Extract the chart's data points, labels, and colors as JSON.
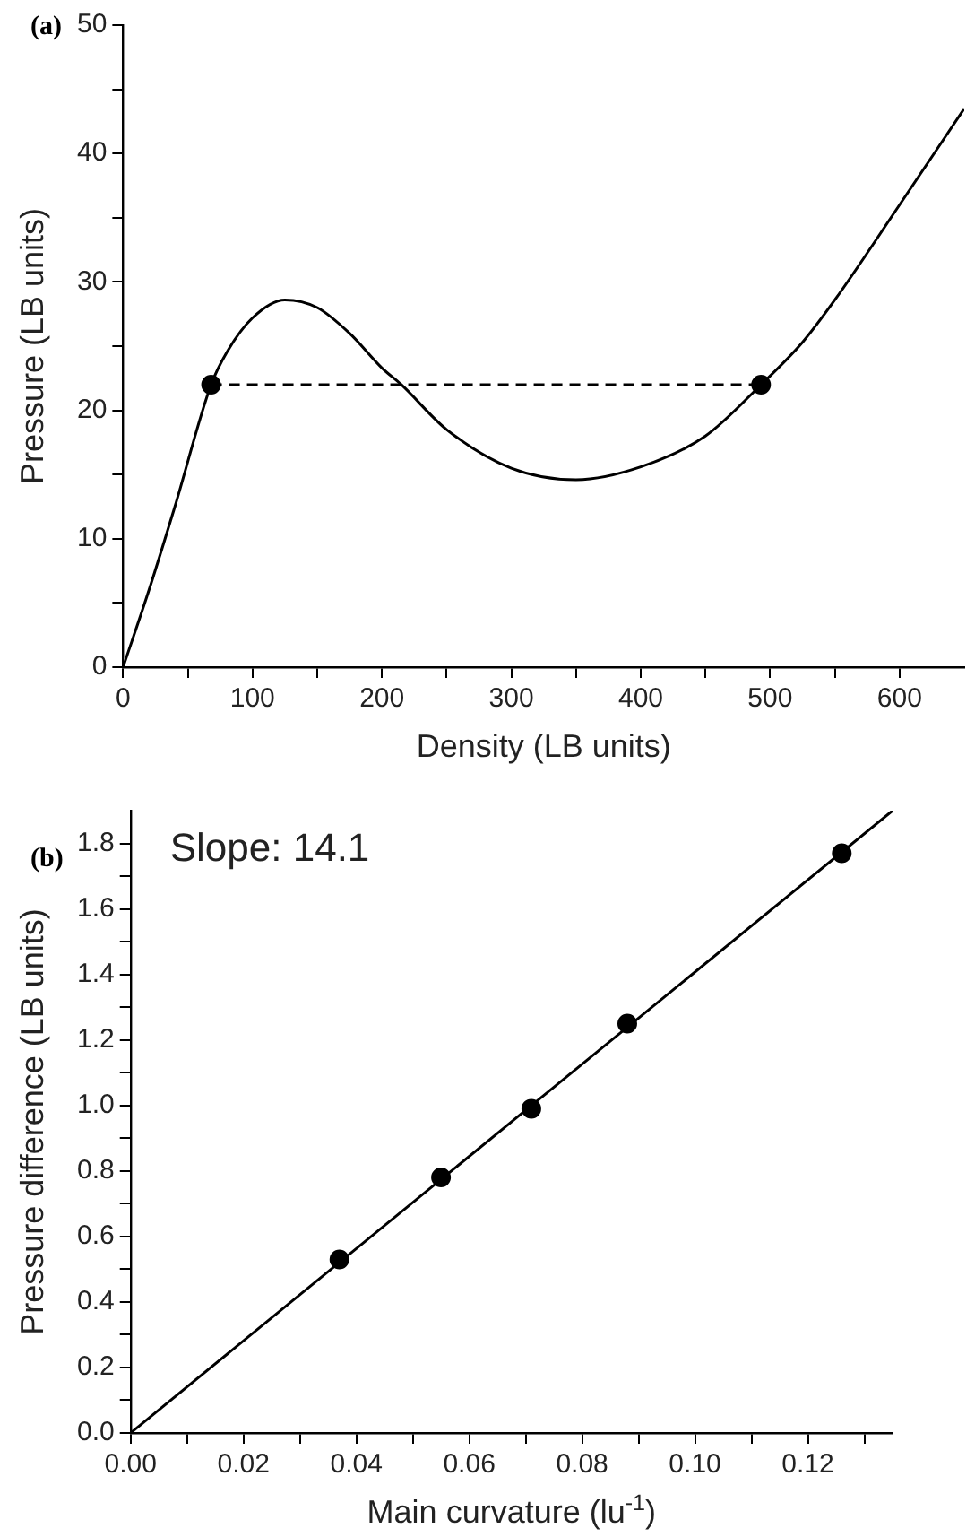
{
  "chart_data": [
    {
      "type": "line",
      "xlabel": "Density (LB units)",
      "ylabel": "Pressure (LB units)",
      "annotations": [
        "(a)"
      ],
      "xlim": [
        0,
        650
      ],
      "xticks": [
        0,
        {
          "value": 50,
          "label": null
        },
        100,
        {
          "value": 150,
          "label": null
        },
        200,
        {
          "value": 250,
          "label": null
        },
        300,
        {
          "value": 350,
          "label": null
        },
        400,
        {
          "value": 450,
          "label": null
        },
        500,
        {
          "value": 550,
          "label": null
        },
        600
      ],
      "ylim": [
        0,
        50
      ],
      "yticks": [
        0,
        {
          "value": 5,
          "label": null
        },
        10,
        {
          "value": 15,
          "label": null
        },
        20,
        {
          "value": 25,
          "label": null
        },
        30,
        {
          "value": 35,
          "label": null
        },
        40,
        {
          "value": 45,
          "label": null
        },
        50
      ],
      "grid": false,
      "legend": false,
      "series": [
        {
          "color": "#000000",
          "marker": "none",
          "line_style": "solid",
          "x": [
            0,
            20,
            40,
            68,
            80,
            100,
            125,
            150,
            175,
            200,
            215,
            250,
            300,
            350,
            400,
            450,
            493,
            525,
            550,
            600,
            650
          ],
          "values": [
            0,
            6,
            12.5,
            22,
            24.5,
            27.2,
            28.6,
            28,
            26,
            23.3,
            22,
            18.5,
            15.5,
            14.6,
            15.6,
            18,
            22,
            25.3,
            28.6,
            36,
            43.5
          ]
        },
        {
          "color": "#000000",
          "marker": "none",
          "line_style": "dashed",
          "x": [
            68,
            493
          ],
          "values": [
            22,
            22
          ]
        },
        {
          "type": "scatter",
          "color": "#000000",
          "marker": "circle",
          "x": [
            68,
            493
          ],
          "values": [
            22,
            22
          ]
        }
      ]
    },
    {
      "type": "scatter",
      "xlabel": "Main curvature (lu$^{-1}$)",
      "ylabel": "Pressure difference (LB units)",
      "annotations": [
        "(b)",
        "Slope: 14.1"
      ],
      "xlim": [
        0,
        0.135
      ],
      "xticks": [
        {
          "value": 0,
          "label": "0.00"
        },
        {
          "value": 0.01,
          "label": null
        },
        0.02,
        {
          "value": 0.03,
          "label": null
        },
        0.04,
        {
          "value": 0.05,
          "label": null
        },
        0.06,
        {
          "value": 0.07,
          "label": null
        },
        0.08,
        {
          "value": 0.09,
          "label": null
        },
        {
          "value": 0.1,
          "label": "0.10"
        },
        {
          "value": 0.11,
          "label": null
        },
        0.12,
        {
          "value": 0.13,
          "label": null
        }
      ],
      "ylim": [
        0,
        1.9
      ],
      "yticks": [
        {
          "value": 0,
          "label": "0.0"
        },
        {
          "value": 0.1,
          "label": null
        },
        0.2,
        {
          "value": 0.3,
          "label": null
        },
        0.4,
        {
          "value": 0.5,
          "label": null
        },
        0.6,
        {
          "value": 0.7,
          "label": null
        },
        0.8,
        {
          "value": 0.9,
          "label": null
        },
        {
          "value": 1,
          "label": "1.0"
        },
        {
          "value": 1.1,
          "label": null
        },
        1.2,
        {
          "value": 1.3,
          "label": null
        },
        1.4,
        {
          "value": 1.5,
          "label": null
        },
        1.6,
        {
          "value": 1.7,
          "label": null
        },
        1.8
      ],
      "grid": false,
      "legend": false,
      "series": [
        {
          "type": "line",
          "color": "#000000",
          "marker": "none",
          "line_style": "solid",
          "x": [
            0,
            0.135
          ],
          "values": [
            0,
            1.9
          ]
        },
        {
          "color": "#000000",
          "marker": "circle",
          "x": [
            0.037,
            0.055,
            0.071,
            0.088,
            0.126
          ],
          "values": [
            0.53,
            0.78,
            0.99,
            1.25,
            1.77
          ]
        }
      ]
    }
  ]
}
